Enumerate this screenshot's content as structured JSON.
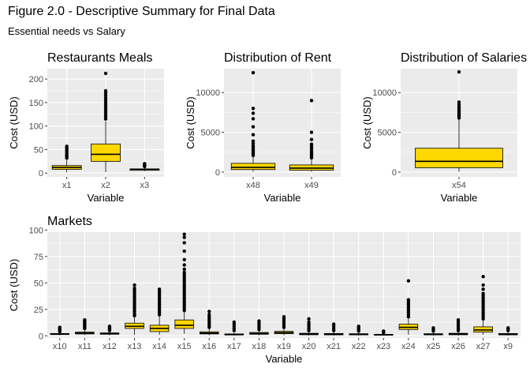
{
  "figure": {
    "title": "Figure 2.0 - Descriptive Summary for Final Data",
    "subtitle": "Essential needs vs Salary"
  },
  "colors": {
    "fill": "#FFD700",
    "panel": "#EBEBEB",
    "grid": "#ffffff",
    "stroke": "#000000"
  },
  "chart_data": [
    {
      "type": "boxplot",
      "title": "Restaurants Meals",
      "xlabel": "Variable",
      "ylabel": "Cost (USD)",
      "ylim": [
        -8,
        222
      ],
      "yticks": [
        0,
        50,
        100,
        150,
        200
      ],
      "categories": [
        "x1",
        "x2",
        "x3"
      ],
      "boxes": [
        {
          "min": 2,
          "q1": 8,
          "median": 12,
          "q3": 16,
          "max": 28,
          "outliers": [
            32,
            35,
            38,
            42,
            46,
            50,
            54,
            57
          ]
        },
        {
          "min": 2,
          "q1": 25,
          "median": 40,
          "q3": 62,
          "max": 110,
          "outliers": [
            115,
            120,
            125,
            130,
            135,
            140,
            145,
            150,
            155,
            160,
            165,
            170,
            175,
            212
          ]
        },
        {
          "min": 4,
          "q1": 6,
          "median": 8,
          "q3": 9,
          "max": 12,
          "outliers": [
            14,
            16,
            18,
            20
          ]
        }
      ]
    },
    {
      "type": "boxplot",
      "title": "Distribution of Rent",
      "xlabel": "Variable",
      "ylabel": "Cost (USD)",
      "ylim": [
        -600,
        13000
      ],
      "yticks": [
        0,
        5000,
        10000
      ],
      "categories": [
        "x48",
        "x49"
      ],
      "boxes": [
        {
          "min": 50,
          "q1": 320,
          "median": 600,
          "q3": 1100,
          "max": 2000,
          "outliers": [
            2100,
            2300,
            2500,
            2700,
            2900,
            3100,
            3300,
            3600,
            3900,
            4700,
            5700,
            6700,
            7400,
            8000,
            12500
          ]
        },
        {
          "min": 30,
          "q1": 230,
          "median": 500,
          "q3": 900,
          "max": 1700,
          "outliers": [
            1800,
            2000,
            2200,
            2400,
            2600,
            2900,
            3200,
            3500,
            4100,
            5000,
            9000
          ]
        }
      ]
    },
    {
      "type": "boxplot",
      "title": "Distribution of Salaries",
      "xlabel": "Variable",
      "ylabel": "Cost (USD)",
      "ylim": [
        -600,
        13000
      ],
      "yticks": [
        0,
        5000,
        10000
      ],
      "categories": [
        "x54"
      ],
      "boxes": [
        {
          "min": 60,
          "q1": 550,
          "median": 1350,
          "q3": 3000,
          "max": 6600,
          "outliers": [
            6800,
            7000,
            7200,
            7400,
            7600,
            7800,
            8000,
            8200,
            8500,
            8800,
            12600
          ]
        }
      ]
    },
    {
      "type": "boxplot",
      "title": "Markets",
      "xlabel": "Variable",
      "ylabel": "Cost (USD)",
      "ylim": [
        -2,
        98
      ],
      "yticks": [
        0,
        25,
        50,
        75,
        100
      ],
      "categories": [
        "x10",
        "x11",
        "x12",
        "x13",
        "x14",
        "x15",
        "x16",
        "x17",
        "x18",
        "x19",
        "x20",
        "x21",
        "x22",
        "x23",
        "x24",
        "x25",
        "x26",
        "x27",
        "x9"
      ],
      "boxes": [
        {
          "min": 0.5,
          "q1": 1.2,
          "median": 1.6,
          "q3": 2.2,
          "max": 3.5,
          "outliers": [
            4,
            5,
            6,
            7,
            8
          ]
        },
        {
          "min": 0.8,
          "q1": 1.8,
          "median": 2.5,
          "q3": 3.5,
          "max": 6,
          "outliers": [
            7,
            8,
            9,
            10,
            11,
            12,
            13,
            14,
            15
          ]
        },
        {
          "min": 0.5,
          "q1": 1.5,
          "median": 2.0,
          "q3": 2.8,
          "max": 4.5,
          "outliers": [
            5,
            6,
            7,
            8,
            9
          ]
        },
        {
          "min": 1,
          "q1": 7,
          "median": 9,
          "q3": 12,
          "max": 18,
          "outliers": [
            19,
            21,
            23,
            25,
            27,
            29,
            31,
            33,
            35,
            37,
            39,
            41,
            43,
            45,
            48
          ]
        },
        {
          "min": 1,
          "q1": 4,
          "median": 7,
          "q3": 10,
          "max": 19,
          "outliers": [
            20,
            22,
            24,
            26,
            28,
            30,
            32,
            34,
            36,
            38,
            40,
            42,
            44
          ]
        },
        {
          "min": 2,
          "q1": 7,
          "median": 10,
          "q3": 15,
          "max": 23,
          "outliers": [
            24,
            26,
            28,
            30,
            32,
            34,
            36,
            38,
            40,
            42,
            44,
            46,
            48,
            50,
            52,
            54,
            56,
            58,
            60,
            63,
            67,
            72,
            80,
            88,
            93,
            96
          ]
        },
        {
          "min": 0.5,
          "q1": 1.8,
          "median": 2.6,
          "q3": 3.8,
          "max": 6.5,
          "outliers": [
            8,
            10,
            12,
            14,
            16,
            18,
            20,
            23
          ]
        },
        {
          "min": 0.3,
          "q1": 0.8,
          "median": 1.2,
          "q3": 1.8,
          "max": 3,
          "outliers": [
            5,
            7,
            9,
            11,
            13
          ]
        },
        {
          "min": 0.5,
          "q1": 1.5,
          "median": 2.2,
          "q3": 3.2,
          "max": 5.5,
          "outliers": [
            6,
            8,
            10,
            12,
            14
          ]
        },
        {
          "min": 0.5,
          "q1": 2,
          "median": 3,
          "q3": 4.2,
          "max": 7,
          "outliers": [
            8,
            10,
            12,
            14,
            16,
            18
          ]
        },
        {
          "min": 0.3,
          "q1": 1,
          "median": 1.6,
          "q3": 2.4,
          "max": 4,
          "outliers": [
            5,
            7,
            9,
            11,
            13,
            16
          ]
        },
        {
          "min": 0.3,
          "q1": 0.9,
          "median": 1.5,
          "q3": 2.2,
          "max": 3.8,
          "outliers": [
            5,
            7,
            9,
            11
          ]
        },
        {
          "min": 0.3,
          "q1": 0.9,
          "median": 1.4,
          "q3": 2.0,
          "max": 3.5,
          "outliers": [
            4.5,
            6,
            7.5,
            9
          ]
        },
        {
          "min": 0.2,
          "q1": 0.6,
          "median": 1.0,
          "q3": 1.4,
          "max": 2.2,
          "outliers": [
            3,
            4.5
          ]
        },
        {
          "min": 1,
          "q1": 6,
          "median": 8,
          "q3": 11,
          "max": 17,
          "outliers": [
            18,
            20,
            22,
            24,
            26,
            28,
            30,
            32,
            34,
            52
          ]
        },
        {
          "min": 0.3,
          "q1": 0.9,
          "median": 1.4,
          "q3": 2.0,
          "max": 3.5,
          "outliers": [
            4.5,
            6,
            7.5
          ]
        },
        {
          "min": 0.3,
          "q1": 1,
          "median": 1.6,
          "q3": 2.4,
          "max": 4,
          "outliers": [
            5,
            7,
            9,
            11,
            13,
            15
          ]
        },
        {
          "min": 1,
          "q1": 3.5,
          "median": 5.5,
          "q3": 8.5,
          "max": 15,
          "outliers": [
            16,
            18,
            20,
            22,
            24,
            26,
            28,
            30,
            32,
            34,
            36,
            38,
            40,
            44,
            48,
            56
          ]
        },
        {
          "min": 0.3,
          "q1": 0.9,
          "median": 1.4,
          "q3": 2.2,
          "max": 3.8,
          "outliers": [
            5,
            6.5,
            7.5
          ]
        }
      ]
    }
  ]
}
